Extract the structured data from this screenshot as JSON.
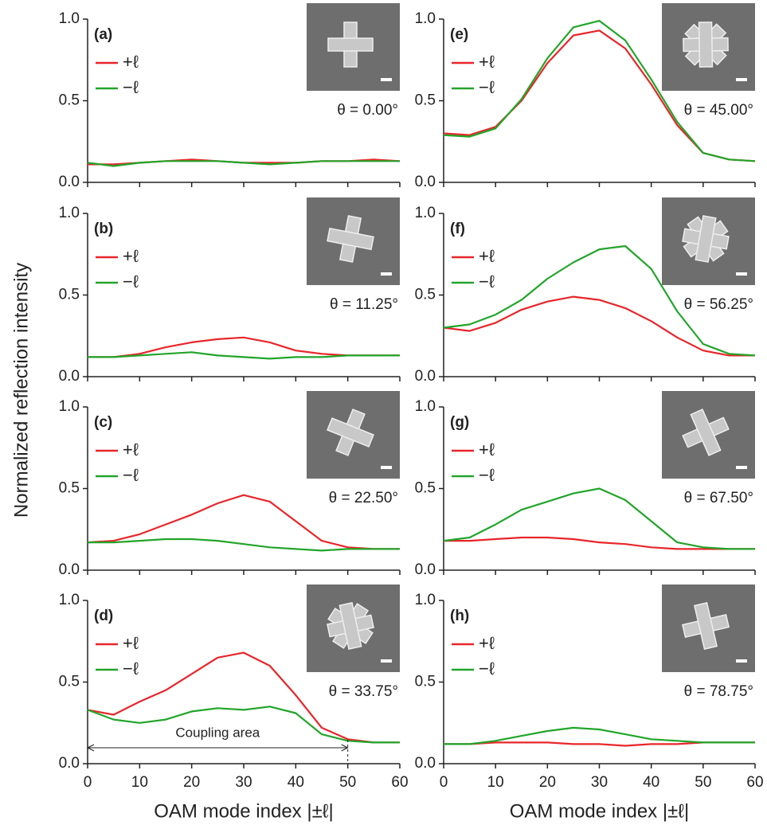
{
  "figure": {
    "ylabel": "Normalized reflection intensity"
  },
  "chart_data": [
    {
      "type": "line",
      "panel_label": "(a)",
      "annotation": "θ = 0.00°",
      "show_xtick_labels": false,
      "x": [
        0,
        5,
        10,
        15,
        20,
        25,
        30,
        35,
        40,
        45,
        50,
        55,
        60
      ],
      "xlim": [
        0,
        60
      ],
      "xticks": [
        0,
        10,
        20,
        30,
        40,
        50,
        60
      ],
      "ylim": [
        0,
        1
      ],
      "yticks": [
        {
          "value": 0,
          "label": "0.0"
        },
        {
          "value": 0.5,
          "label": "0.5"
        },
        {
          "value": 1,
          "label": "1.0"
        }
      ],
      "series": [
        {
          "name": "+ℓ",
          "color": "#e8262a",
          "values": [
            0.11,
            0.11,
            0.12,
            0.13,
            0.14,
            0.13,
            0.12,
            0.12,
            0.12,
            0.13,
            0.13,
            0.14,
            0.13
          ]
        },
        {
          "name": "−ℓ",
          "color": "#22a52a",
          "values": [
            0.12,
            0.1,
            0.12,
            0.13,
            0.13,
            0.13,
            0.12,
            0.11,
            0.12,
            0.13,
            0.13,
            0.13,
            0.13
          ]
        }
      ]
    },
    {
      "type": "line",
      "panel_label": "(b)",
      "annotation": "θ = 11.25°",
      "show_xtick_labels": false,
      "x": [
        0,
        5,
        10,
        15,
        20,
        25,
        30,
        35,
        40,
        45,
        50,
        55,
        60
      ],
      "xlim": [
        0,
        60
      ],
      "xticks": [
        0,
        10,
        20,
        30,
        40,
        50,
        60
      ],
      "ylim": [
        0,
        1
      ],
      "yticks": [
        {
          "value": 0,
          "label": "0.0"
        },
        {
          "value": 0.5,
          "label": "0.5"
        },
        {
          "value": 1,
          "label": "1.0"
        }
      ],
      "series": [
        {
          "name": "+ℓ",
          "color": "#e8262a",
          "values": [
            0.12,
            0.12,
            0.14,
            0.18,
            0.21,
            0.23,
            0.24,
            0.21,
            0.16,
            0.14,
            0.13,
            0.13,
            0.13
          ]
        },
        {
          "name": "−ℓ",
          "color": "#22a52a",
          "values": [
            0.12,
            0.12,
            0.13,
            0.14,
            0.15,
            0.13,
            0.12,
            0.11,
            0.12,
            0.12,
            0.13,
            0.13,
            0.13
          ]
        }
      ]
    },
    {
      "type": "line",
      "panel_label": "(c)",
      "annotation": "θ = 22.50°",
      "show_xtick_labels": false,
      "x": [
        0,
        5,
        10,
        15,
        20,
        25,
        30,
        35,
        40,
        45,
        50,
        55,
        60
      ],
      "xlim": [
        0,
        60
      ],
      "xticks": [
        0,
        10,
        20,
        30,
        40,
        50,
        60
      ],
      "ylim": [
        0,
        1
      ],
      "yticks": [
        {
          "value": 0,
          "label": "0.0"
        },
        {
          "value": 0.5,
          "label": "0.5"
        },
        {
          "value": 1,
          "label": "1.0"
        }
      ],
      "series": [
        {
          "name": "+ℓ",
          "color": "#e8262a",
          "values": [
            0.17,
            0.18,
            0.22,
            0.28,
            0.34,
            0.41,
            0.46,
            0.42,
            0.3,
            0.18,
            0.14,
            0.13,
            0.13
          ]
        },
        {
          "name": "−ℓ",
          "color": "#22a52a",
          "values": [
            0.17,
            0.17,
            0.18,
            0.19,
            0.19,
            0.18,
            0.16,
            0.14,
            0.13,
            0.12,
            0.13,
            0.13,
            0.13
          ]
        }
      ]
    },
    {
      "type": "line",
      "panel_label": "(d)",
      "annotation": "θ = 33.75°",
      "show_xtick_labels": true,
      "xlabel": "OAM mode index |±ℓ|",
      "span_annotation": {
        "text": "Coupling area",
        "span": [
          0,
          50
        ]
      },
      "x": [
        0,
        5,
        10,
        15,
        20,
        25,
        30,
        35,
        40,
        45,
        50,
        55,
        60
      ],
      "xlim": [
        0,
        60
      ],
      "xticks": [
        0,
        10,
        20,
        30,
        40,
        50,
        60
      ],
      "ylim": [
        0,
        1
      ],
      "yticks": [
        {
          "value": 0,
          "label": "0.0"
        },
        {
          "value": 0.5,
          "label": "0.5"
        },
        {
          "value": 1,
          "label": "1.0"
        }
      ],
      "series": [
        {
          "name": "+ℓ",
          "color": "#e8262a",
          "values": [
            0.33,
            0.3,
            0.38,
            0.45,
            0.55,
            0.65,
            0.68,
            0.6,
            0.42,
            0.22,
            0.15,
            0.13,
            0.13
          ]
        },
        {
          "name": "−ℓ",
          "color": "#22a52a",
          "values": [
            0.33,
            0.27,
            0.25,
            0.27,
            0.32,
            0.34,
            0.33,
            0.35,
            0.31,
            0.18,
            0.14,
            0.13,
            0.13
          ]
        }
      ]
    },
    {
      "type": "line",
      "panel_label": "(e)",
      "annotation": "θ = 45.00°",
      "show_xtick_labels": false,
      "x": [
        0,
        5,
        10,
        15,
        20,
        25,
        30,
        35,
        40,
        45,
        50,
        55,
        60
      ],
      "xlim": [
        0,
        60
      ],
      "xticks": [
        0,
        10,
        20,
        30,
        40,
        50,
        60
      ],
      "ylim": [
        0,
        1
      ],
      "yticks": [
        {
          "value": 0,
          "label": "0.0"
        },
        {
          "value": 0.5,
          "label": "0.5"
        },
        {
          "value": 1,
          "label": "1.0"
        }
      ],
      "series": [
        {
          "name": "+ℓ",
          "color": "#e8262a",
          "values": [
            0.3,
            0.29,
            0.34,
            0.5,
            0.73,
            0.9,
            0.93,
            0.82,
            0.6,
            0.35,
            0.18,
            0.14,
            0.13
          ]
        },
        {
          "name": "−ℓ",
          "color": "#22a52a",
          "values": [
            0.29,
            0.28,
            0.33,
            0.51,
            0.76,
            0.95,
            0.99,
            0.87,
            0.63,
            0.37,
            0.18,
            0.14,
            0.13
          ]
        }
      ]
    },
    {
      "type": "line",
      "panel_label": "(f)",
      "annotation": "θ = 56.25°",
      "show_xtick_labels": false,
      "x": [
        0,
        5,
        10,
        15,
        20,
        25,
        30,
        35,
        40,
        45,
        50,
        55,
        60
      ],
      "xlim": [
        0,
        60
      ],
      "xticks": [
        0,
        10,
        20,
        30,
        40,
        50,
        60
      ],
      "ylim": [
        0,
        1
      ],
      "yticks": [
        {
          "value": 0,
          "label": "0.0"
        },
        {
          "value": 0.5,
          "label": "0.5"
        },
        {
          "value": 1,
          "label": "1.0"
        }
      ],
      "series": [
        {
          "name": "+ℓ",
          "color": "#e8262a",
          "values": [
            0.3,
            0.28,
            0.33,
            0.41,
            0.46,
            0.49,
            0.47,
            0.42,
            0.34,
            0.24,
            0.16,
            0.13,
            0.13
          ]
        },
        {
          "name": "−ℓ",
          "color": "#22a52a",
          "values": [
            0.3,
            0.32,
            0.38,
            0.47,
            0.6,
            0.7,
            0.78,
            0.8,
            0.66,
            0.4,
            0.2,
            0.14,
            0.13
          ]
        }
      ]
    },
    {
      "type": "line",
      "panel_label": "(g)",
      "annotation": "θ = 67.50°",
      "show_xtick_labels": false,
      "x": [
        0,
        5,
        10,
        15,
        20,
        25,
        30,
        35,
        40,
        45,
        50,
        55,
        60
      ],
      "xlim": [
        0,
        60
      ],
      "xticks": [
        0,
        10,
        20,
        30,
        40,
        50,
        60
      ],
      "ylim": [
        0,
        1
      ],
      "yticks": [
        {
          "value": 0,
          "label": "0.0"
        },
        {
          "value": 0.5,
          "label": "0.5"
        },
        {
          "value": 1,
          "label": "1.0"
        }
      ],
      "series": [
        {
          "name": "+ℓ",
          "color": "#e8262a",
          "values": [
            0.18,
            0.18,
            0.19,
            0.2,
            0.2,
            0.19,
            0.17,
            0.16,
            0.14,
            0.13,
            0.13,
            0.13,
            0.13
          ]
        },
        {
          "name": "−ℓ",
          "color": "#22a52a",
          "values": [
            0.18,
            0.2,
            0.28,
            0.37,
            0.42,
            0.47,
            0.5,
            0.43,
            0.3,
            0.17,
            0.14,
            0.13,
            0.13
          ]
        }
      ]
    },
    {
      "type": "line",
      "panel_label": "(h)",
      "annotation": "θ = 78.75°",
      "show_xtick_labels": true,
      "xlabel": "OAM mode index |±ℓ|",
      "x": [
        0,
        5,
        10,
        15,
        20,
        25,
        30,
        35,
        40,
        45,
        50,
        55,
        60
      ],
      "xlim": [
        0,
        60
      ],
      "xticks": [
        0,
        10,
        20,
        30,
        40,
        50,
        60
      ],
      "ylim": [
        0,
        1
      ],
      "yticks": [
        {
          "value": 0,
          "label": "0.0"
        },
        {
          "value": 0.5,
          "label": "0.5"
        },
        {
          "value": 1,
          "label": "1.0"
        }
      ],
      "series": [
        {
          "name": "+ℓ",
          "color": "#e8262a",
          "values": [
            0.12,
            0.12,
            0.13,
            0.13,
            0.13,
            0.12,
            0.12,
            0.11,
            0.12,
            0.12,
            0.13,
            0.13,
            0.13
          ]
        },
        {
          "name": "−ℓ",
          "color": "#22a52a",
          "values": [
            0.12,
            0.12,
            0.14,
            0.17,
            0.2,
            0.22,
            0.21,
            0.18,
            0.15,
            0.14,
            0.13,
            0.13,
            0.13
          ]
        }
      ]
    }
  ]
}
